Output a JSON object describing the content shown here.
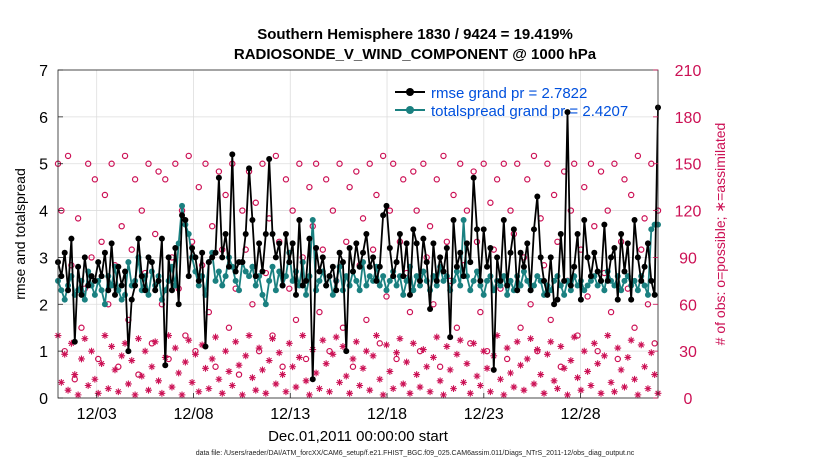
{
  "chart_data": {
    "type": "line",
    "title": "Southern Hemisphere 1830 / 9424 = 19.419%",
    "subtitle": "RADIOSONDE_V_WIND_COMPONENT @ 1000 hPa",
    "xlabel": "Dec.01,2011 00:00:00 start",
    "ylabel_left": "rmse and totalspread",
    "ylabel_right": "# of obs: o=possible; ∗=assimilated",
    "xlim": [
      1,
      32
    ],
    "ylim_left": [
      0,
      7
    ],
    "ylim_right": [
      0,
      210
    ],
    "x_ticks": [
      3,
      8,
      13,
      18,
      23,
      28
    ],
    "x_tick_labels": [
      "12/03",
      "12/08",
      "12/13",
      "12/18",
      "12/23",
      "12/28"
    ],
    "y_ticks_left": [
      "0",
      "1",
      "2",
      "3",
      "4",
      "5",
      "6",
      "7"
    ],
    "y_ticks_right": [
      "0",
      "30",
      "60",
      "90",
      "120",
      "150",
      "180",
      "210"
    ],
    "grid": true,
    "legend_position": "top-right",
    "series": [
      {
        "name": "rmse grand pr = 2.7822",
        "color": "#000000",
        "axis": "left",
        "values": [
          2.9,
          2.6,
          3.1,
          2.3,
          3.4,
          1.2,
          2.8,
          2.2,
          3.0,
          2.4,
          2.6,
          2.5,
          2.9,
          2.6,
          3.1,
          2.3,
          3.3,
          2.2,
          2.8,
          2.4,
          2.7,
          1.0,
          2.1,
          2.4,
          3.4,
          2.6,
          2.3,
          3.0,
          2.9,
          2.3,
          2.5,
          3.4,
          0.7,
          3.0,
          2.3,
          3.2,
          2.0,
          3.9,
          3.8,
          2.6,
          3.2,
          3.0,
          2.5,
          3.1,
          1.1,
          2.9,
          3.0,
          3.1,
          4.7,
          3.0,
          3.5,
          2.8,
          5.2,
          2.7,
          2.9,
          2.9,
          3.5,
          4.9,
          3.8,
          2.6,
          3.3,
          2.7,
          3.5,
          5.1,
          3.5,
          3.0,
          3.3,
          2.4,
          3.5,
          2.9,
          3.3,
          2.2,
          3.8,
          2.4,
          2.5,
          3.4,
          0.4,
          3.2,
          2.7,
          3.0,
          2.4,
          2.6,
          2.8,
          2.3,
          3.1,
          2.9,
          1.0,
          3.2,
          2.7,
          3.3,
          2.8,
          3.1,
          3.5,
          2.8,
          3.0,
          2.5,
          2.8,
          3.9,
          4.1,
          3.2,
          2.6,
          2.9,
          3.5,
          2.6,
          3.3,
          2.2,
          3.6,
          3.3,
          2.5,
          3.4,
          2.9,
          1.9,
          3.3,
          2.5,
          3.0,
          2.7,
          3.2,
          1.3,
          3.8,
          2.8,
          3.1,
          2.6,
          3.3,
          2.9,
          4.7,
          3.6,
          2.5,
          3.6,
          2.8,
          3.2,
          0.6,
          3.0,
          2.5,
          3.8,
          2.4,
          3.1,
          3.6,
          2.3,
          3.1,
          2.8,
          3.3,
          2.3,
          3.6,
          4.3,
          3.0,
          2.5,
          2.2,
          3.0,
          2.0,
          2.1,
          3.5,
          2.5,
          6.1,
          2.4,
          2.8,
          3.5,
          2.1,
          3.8,
          3.0,
          2.6,
          3.1,
          2.7,
          2.5,
          3.7,
          2.5,
          3.0,
          3.2,
          2.1,
          3.5,
          2.7,
          3.3,
          2.1,
          3.8,
          3.0,
          2.5,
          2.8,
          3.3,
          2.5,
          2.2,
          6.2
        ]
      },
      {
        "name": "totalspread grand pr = 2.4207",
        "color": "#1a8080",
        "axis": "left",
        "values": [
          2.5,
          2.3,
          2.1,
          2.4,
          2.6,
          2.2,
          2.3,
          2.5,
          2.1,
          2.7,
          2.4,
          2.2,
          2.5,
          2.3,
          2.0,
          2.6,
          2.4,
          2.8,
          2.3,
          2.1,
          2.2,
          2.9,
          2.4,
          2.5,
          3.0,
          2.3,
          2.6,
          2.2,
          2.7,
          2.4,
          2.6,
          2.1,
          2.3,
          2.5,
          2.8,
          2.4,
          3.3,
          4.1,
          3.7,
          3.5,
          3.0,
          2.7,
          2.4,
          2.6,
          2.2,
          2.9,
          3.1,
          2.5,
          2.7,
          2.4,
          2.6,
          3.0,
          2.8,
          2.5,
          2.3,
          2.9,
          2.7,
          2.6,
          2.8,
          2.4,
          2.6,
          2.2,
          2.0,
          2.5,
          2.8,
          2.3,
          2.7,
          2.4,
          2.6,
          3.1,
          2.5,
          2.7,
          2.4,
          2.9,
          2.2,
          2.6,
          3.8,
          2.3,
          2.5,
          2.7,
          2.4,
          2.6,
          2.2,
          2.5,
          2.8,
          2.3,
          2.6,
          2.4,
          2.7,
          2.5,
          2.3,
          2.9,
          2.4,
          2.6,
          2.5,
          2.8,
          2.4,
          2.6,
          2.3,
          2.5,
          2.7,
          2.4,
          2.6,
          2.2,
          2.5,
          2.8,
          2.3,
          2.6,
          2.4,
          2.7,
          2.5,
          2.3,
          2.6,
          2.4,
          2.8,
          2.5,
          2.6,
          2.3,
          2.5,
          2.7,
          2.4,
          3.8,
          2.6,
          2.3,
          2.5,
          2.7,
          2.4,
          2.2,
          2.5,
          2.6,
          2.3,
          2.5,
          2.4,
          2.6,
          2.2,
          2.5,
          2.3,
          2.6,
          2.4,
          2.7,
          2.5,
          2.3,
          2.4,
          2.6,
          2.5,
          2.2,
          2.4,
          2.3,
          2.5,
          2.6,
          2.4,
          2.2,
          2.5,
          2.3,
          2.6,
          2.4,
          2.5,
          2.3,
          2.4,
          2.5,
          2.6,
          2.4,
          2.5,
          2.3,
          2.7,
          2.5,
          2.4,
          2.6,
          2.3,
          2.5,
          2.6,
          2.4,
          2.5,
          2.3,
          2.6,
          2.4,
          2.2,
          3.6,
          3.7,
          3.7
        ]
      },
      {
        "name": "possible",
        "color": "#cc1155",
        "axis": "right",
        "marker": "circle",
        "values": [
          150,
          120,
          30,
          155,
          85,
          12,
          115,
          45,
          70,
          150,
          90,
          140,
          25,
          100,
          130,
          60,
          150,
          85,
          20,
          110,
          155,
          50,
          95,
          140,
          15,
          120,
          80,
          150,
          35,
          105,
          145,
          60,
          140,
          25,
          90,
          150,
          70,
          120,
          40,
          155,
          100,
          30,
          135,
          85,
          150,
          55,
          110,
          20,
          145,
          95,
          130,
          45,
          150,
          70,
          15,
          120,
          95,
          145,
          60,
          125,
          30,
          150,
          80,
          115,
          40,
          155,
          100,
          20,
          140,
          70,
          120,
          50,
          150,
          90,
          25,
          135,
          110,
          150,
          55,
          95,
          140,
          30,
          120,
          75,
          150,
          45,
          100,
          135,
          20,
          145,
          85,
          115,
          50,
          150,
          95,
          130,
          35,
          155,
          65,
          120,
          150,
          25,
          100,
          140,
          80,
          55,
          145,
          120,
          30,
          150,
          90,
          110,
          60,
          140,
          20,
          155,
          100,
          75,
          130,
          45,
          150,
          85,
          120,
          35,
          145,
          100,
          55,
          150,
          30,
          125,
          95,
          140,
          70,
          150,
          25,
          120,
          105,
          150,
          45,
          90,
          140,
          60,
          155,
          30,
          115,
          85,
          150,
          50,
          130,
          100,
          20,
          145,
          75,
          120,
          150,
          40,
          95,
          135,
          65,
          150,
          110,
          30,
          145,
          80,
          120,
          55,
          150,
          25,
          100,
          140,
          70,
          130,
          45,
          155,
          95,
          115,
          60,
          150,
          35,
          120
        ]
      },
      {
        "name": "assimilated",
        "color": "#cc1155",
        "axis": "right",
        "marker": "asterisk",
        "values": [
          40,
          10,
          28,
          5,
          35,
          15,
          2,
          25,
          38,
          8,
          30,
          12,
          3,
          22,
          40,
          6,
          33,
          18,
          4,
          27,
          35,
          9,
          24,
          2,
          38,
          14,
          30,
          5,
          20,
          36,
          11,
          3,
          26,
          40,
          7,
          32,
          16,
          2,
          23,
          37,
          10,
          28,
          4,
          34,
          19,
          6,
          25,
          39,
          12,
          3,
          30,
          17,
          8,
          36,
          21,
          2,
          27,
          40,
          13,
          5,
          32,
          18,
          3,
          24,
          38,
          9,
          29,
          15,
          4,
          35,
          20,
          7,
          26,
          40,
          11,
          2,
          31,
          16,
          6,
          37,
          22,
          4,
          28,
          39,
          10,
          33,
          14,
          3,
          25,
          36,
          8,
          19,
          30,
          5,
          27,
          40,
          12,
          2,
          34,
          17,
          6,
          29,
          38,
          9,
          23,
          3,
          35,
          15,
          7,
          31,
          20,
          4,
          26,
          39,
          11,
          2,
          33,
          18,
          6,
          28,
          37,
          10,
          22,
          3,
          35,
          14,
          8,
          30,
          19,
          4,
          27,
          40,
          12,
          2,
          32,
          16,
          7,
          36,
          21,
          5,
          25,
          38,
          9,
          31,
          15,
          3,
          28,
          36,
          11,
          6,
          33,
          19,
          2,
          24,
          39,
          13,
          5,
          30,
          17,
          8,
          35,
          22,
          3,
          27,
          40,
          10,
          4,
          32,
          18,
          7,
          26,
          37,
          12,
          2,
          34,
          20,
          6,
          29,
          15,
          3
        ]
      }
    ],
    "legend": [
      {
        "label": "rmse grand pr = 2.7822",
        "color": "#000000",
        "text_color": "#0050dd"
      },
      {
        "label": "totalspread grand pr = 2.4207",
        "color": "#1a8080",
        "text_color": "#0050dd"
      }
    ]
  },
  "footer": "data file: /Users/raeder/DAI/ATM_forcXX/CAM6_setup/f.e21.FHIST_BGC.f09_025.CAM6assim.011/Diags_NTrS_2011-12/obs_diag_output.nc"
}
